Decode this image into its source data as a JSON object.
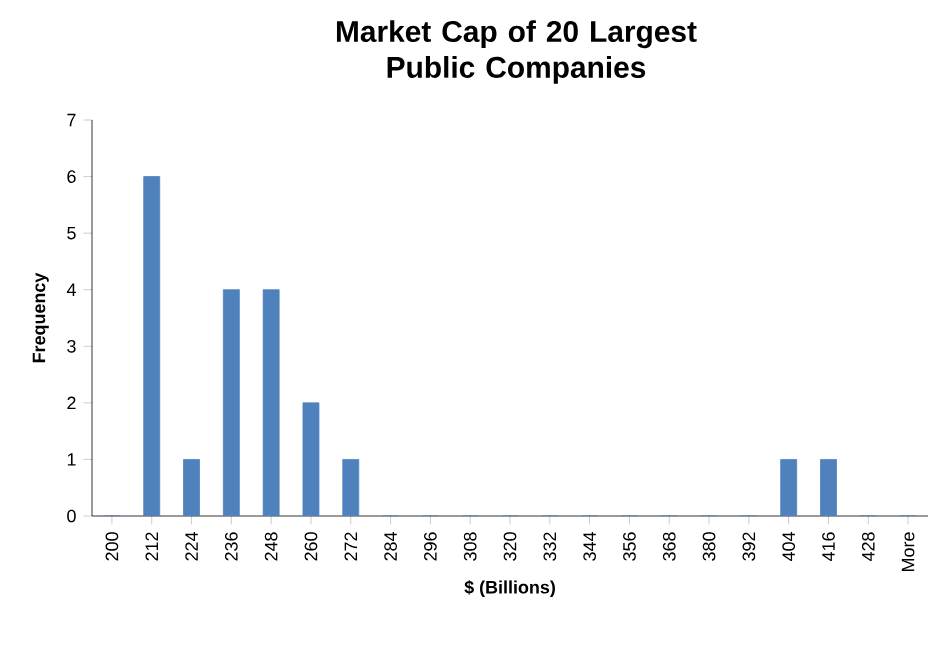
{
  "chart_data": {
    "type": "bar",
    "title": "Market Cap of 20 Largest Public Companies",
    "xlabel": "$ (Billions)",
    "ylabel": "Frequency",
    "categories": [
      "200",
      "212",
      "224",
      "236",
      "248",
      "260",
      "272",
      "284",
      "296",
      "308",
      "320",
      "332",
      "344",
      "356",
      "368",
      "380",
      "392",
      "404",
      "416",
      "428",
      "More"
    ],
    "values": [
      0,
      6,
      1,
      4,
      4,
      2,
      1,
      0,
      0,
      0,
      0,
      0,
      0,
      0,
      0,
      0,
      0,
      1,
      1,
      0,
      0
    ],
    "color": "#4f81bd",
    "ylim": [
      0,
      7
    ],
    "yticks": [
      0,
      1,
      2,
      3,
      4,
      5,
      6,
      7
    ]
  }
}
